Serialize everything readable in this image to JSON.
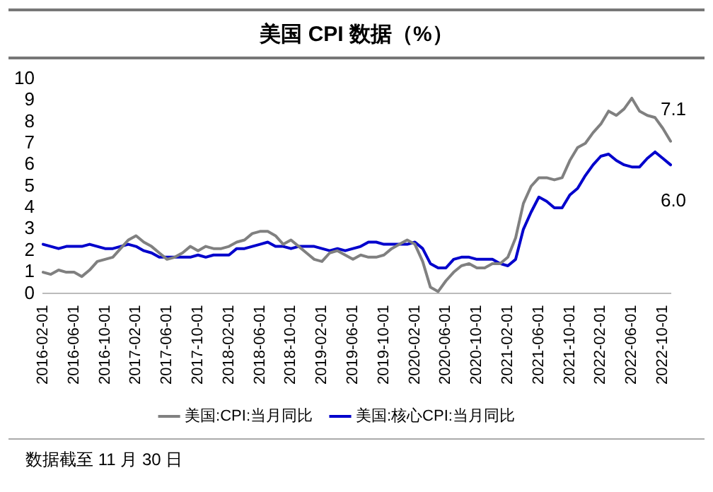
{
  "chart_data": {
    "type": "line",
    "title": "美国 CPI 数据（%）",
    "categories": [
      "2016-02-01",
      null,
      null,
      null,
      "2016-06-01",
      null,
      null,
      null,
      "2016-10-01",
      null,
      null,
      null,
      "2017-02-01",
      null,
      null,
      null,
      "2017-06-01",
      null,
      null,
      null,
      "2017-10-01",
      null,
      null,
      null,
      "2018-02-01",
      null,
      null,
      null,
      "2018-06-01",
      null,
      null,
      null,
      "2018-10-01",
      null,
      null,
      null,
      "2019-02-01",
      null,
      null,
      null,
      "2019-06-01",
      null,
      null,
      null,
      "2019-10-01",
      null,
      null,
      null,
      "2020-02-01",
      null,
      null,
      null,
      "2020-06-01",
      null,
      null,
      null,
      "2020-10-01",
      null,
      null,
      null,
      "2021-02-01",
      null,
      null,
      null,
      "2021-06-01",
      null,
      null,
      null,
      "2021-10-01",
      null,
      null,
      null,
      "2022-02-01",
      null,
      null,
      null,
      "2022-06-01",
      null,
      null,
      null,
      "2022-10-01",
      null
    ],
    "series": [
      {
        "name": "美国:CPI:当月同比",
        "color": "#808080",
        "values": [
          1.0,
          0.9,
          1.1,
          1.0,
          1.0,
          0.8,
          1.1,
          1.5,
          1.6,
          1.7,
          2.1,
          2.5,
          2.7,
          2.4,
          2.2,
          1.9,
          1.6,
          1.7,
          1.9,
          2.2,
          2.0,
          2.2,
          2.1,
          2.1,
          2.2,
          2.4,
          2.5,
          2.8,
          2.9,
          2.9,
          2.7,
          2.3,
          2.5,
          2.2,
          1.9,
          1.6,
          1.5,
          1.9,
          2.0,
          1.8,
          1.6,
          1.8,
          1.7,
          1.7,
          1.8,
          2.1,
          2.3,
          2.5,
          2.3,
          1.5,
          0.3,
          0.1,
          0.6,
          1.0,
          1.3,
          1.4,
          1.2,
          1.2,
          1.4,
          1.4,
          1.7,
          2.6,
          4.2,
          5.0,
          5.4,
          5.4,
          5.3,
          5.4,
          6.2,
          6.8,
          7.0,
          7.5,
          7.9,
          8.5,
          8.3,
          8.6,
          9.1,
          8.5,
          8.3,
          8.2,
          7.7,
          7.1
        ],
        "value_labels": [
          null,
          null,
          null,
          null,
          null,
          null,
          null,
          null,
          null,
          null,
          null,
          null,
          null,
          null,
          null,
          null,
          null,
          null,
          null,
          null,
          null,
          null,
          null,
          null,
          null,
          null,
          null,
          null,
          null,
          null,
          null,
          null,
          null,
          null,
          null,
          null,
          null,
          null,
          null,
          null,
          null,
          null,
          null,
          null,
          null,
          null,
          null,
          null,
          null,
          null,
          null,
          null,
          null,
          null,
          null,
          null,
          null,
          null,
          null,
          null,
          null,
          null,
          null,
          null,
          null,
          null,
          null,
          null,
          null,
          null,
          null,
          null,
          null,
          null,
          null,
          null,
          null,
          null,
          null,
          null,
          null,
          "7.1"
        ]
      },
      {
        "name": "美国:核心CPI:当月同比",
        "color": "#0000cc",
        "values": [
          2.3,
          2.2,
          2.1,
          2.2,
          2.2,
          2.2,
          2.3,
          2.2,
          2.1,
          2.1,
          2.2,
          2.3,
          2.2,
          2.0,
          1.9,
          1.7,
          1.7,
          1.7,
          1.7,
          1.7,
          1.8,
          1.7,
          1.8,
          1.8,
          1.8,
          2.1,
          2.1,
          2.2,
          2.3,
          2.4,
          2.2,
          2.2,
          2.1,
          2.2,
          2.2,
          2.2,
          2.1,
          2.0,
          2.1,
          2.0,
          2.1,
          2.2,
          2.4,
          2.4,
          2.3,
          2.3,
          2.3,
          2.3,
          2.4,
          2.1,
          1.4,
          1.2,
          1.2,
          1.6,
          1.7,
          1.7,
          1.6,
          1.6,
          1.6,
          1.4,
          1.3,
          1.6,
          3.0,
          3.8,
          4.5,
          4.3,
          4.0,
          4.0,
          4.6,
          4.9,
          5.5,
          6.0,
          6.4,
          6.5,
          6.2,
          6.0,
          5.9,
          5.9,
          6.3,
          6.6,
          6.3,
          6.0
        ],
        "value_labels": [
          null,
          null,
          null,
          null,
          null,
          null,
          null,
          null,
          null,
          null,
          null,
          null,
          null,
          null,
          null,
          null,
          null,
          null,
          null,
          null,
          null,
          null,
          null,
          null,
          null,
          null,
          null,
          null,
          null,
          null,
          null,
          null,
          null,
          null,
          null,
          null,
          null,
          null,
          null,
          null,
          null,
          null,
          null,
          null,
          null,
          null,
          null,
          null,
          null,
          null,
          null,
          null,
          null,
          null,
          null,
          null,
          null,
          null,
          null,
          null,
          null,
          null,
          null,
          null,
          null,
          null,
          null,
          null,
          null,
          null,
          null,
          null,
          null,
          null,
          null,
          null,
          null,
          null,
          null,
          null,
          null,
          "6.0"
        ]
      }
    ],
    "ylim": [
      0,
      10
    ],
    "yticks": [
      0,
      1,
      2,
      3,
      4,
      5,
      6,
      7,
      8,
      9,
      10
    ],
    "grid": false,
    "legend": "bottom",
    "marker": "none",
    "line_style": "solid",
    "annotations": [
      "数据截至 11 月 30 日"
    ]
  }
}
